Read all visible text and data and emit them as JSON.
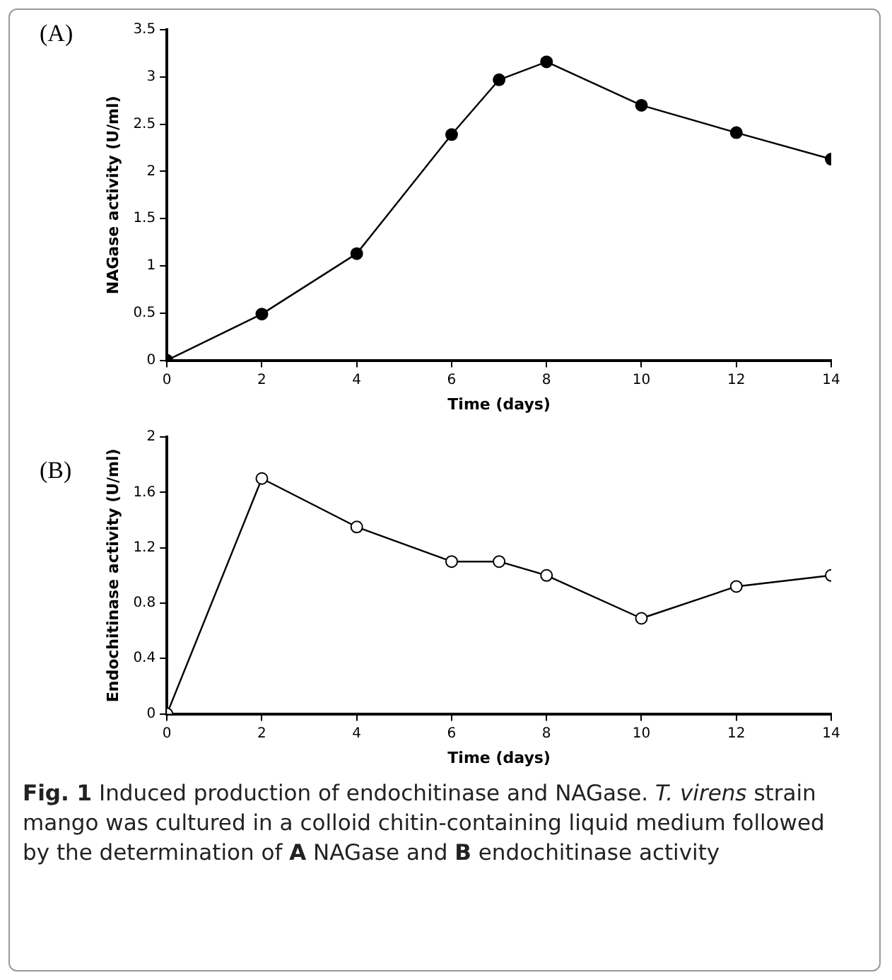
{
  "chart_data": [
    {
      "type": "line",
      "title": "(A)",
      "xlabel": "Time (days)",
      "ylabel": "NAGase activity (U/ml)",
      "x": [
        0,
        2,
        4,
        6,
        7,
        8,
        10,
        12,
        14
      ],
      "series": [
        {
          "color": "#000000",
          "values": [
            0,
            0.49,
            1.13,
            2.39,
            2.97,
            3.16,
            2.7,
            2.41,
            2.13
          ]
        }
      ],
      "xlim": [
        0,
        14
      ],
      "xticks": [
        0,
        2,
        4,
        6,
        8,
        10,
        12,
        14
      ],
      "ylim": [
        0,
        3.5
      ],
      "yticks": [
        0,
        0.5,
        1,
        1.5,
        2,
        2.5,
        3,
        3.5
      ],
      "grid": false,
      "legend": false,
      "marker": "circle",
      "line_style": "solid"
    },
    {
      "type": "line",
      "title": "(B)",
      "xlabel": "Time (days)",
      "ylabel": "Endochitinase activity (U/ml)",
      "x": [
        0,
        2,
        4,
        6,
        7,
        8,
        10,
        12,
        14
      ],
      "series": [
        {
          "color": "#000000",
          "colors": [
            "#ffffff",
            "#ffffff",
            "#ffffff",
            "#ffffff",
            "#ffffff",
            "#ffffff",
            "#ffffff",
            "#ffffff",
            "#ffffff"
          ],
          "values": [
            0,
            1.7,
            1.35,
            1.1,
            1.1,
            1.0,
            0.69,
            0.92,
            1.0
          ]
        }
      ],
      "xlim": [
        0,
        14
      ],
      "xticks": [
        0,
        2,
        4,
        6,
        8,
        10,
        12,
        14
      ],
      "ylim": [
        0,
        2
      ],
      "yticks": [
        0,
        0.4,
        0.8,
        1.2,
        1.6,
        2
      ],
      "grid": false,
      "legend": false,
      "marker": "circle",
      "line_style": "solid",
      "annotations": [
        "**Fig. 1** Induced production of endochitinase and NAGase. *T. virens* strain mango was cultured in a colloid chitin-containing liquid medium followed by the determination of **A** NAGase and **B** endochitinase activity"
      ]
    }
  ]
}
